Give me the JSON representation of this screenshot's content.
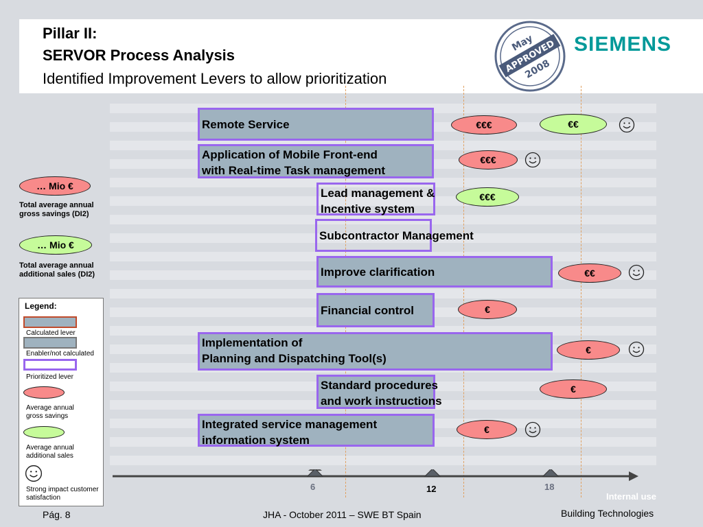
{
  "header": {
    "title_line1": "Pillar II:",
    "title_line2": "SERVOR Process Analysis",
    "subtitle": "Identified Improvement Levers to allow prioritization",
    "brand": "SIEMENS",
    "stamp_text": "May APPROVED 2008"
  },
  "side": {
    "gross_pill": "… Mio €",
    "gross_note_line1": "Total average annual",
    "gross_note_line2": "gross savings (DI2)",
    "sales_pill": "… Mio €",
    "sales_note_line1": "Total average annual",
    "sales_note_line2": "additional sales (DI2)"
  },
  "legend": {
    "title": "Legend:",
    "calculated": "Calculated lever",
    "enabler": "Enabler/not calculated",
    "prioritized": "Prioritized lever",
    "gross_line1": "Average annual",
    "gross_line2": "gross savings",
    "sales_line1": "Average annual",
    "sales_line2": "additional sales",
    "impact_line1": "Strong impact customer",
    "impact_line2": "satisfaction"
  },
  "levers": [
    {
      "line1": "Remote Service",
      "line2": "",
      "savings": "€€€",
      "sales": "€€",
      "impact": true
    },
    {
      "line1": "Application of Mobile Front-end",
      "line2": "with Real-time Task management",
      "savings": "€€€",
      "sales": "",
      "impact": true
    },
    {
      "line1": "Lead management &",
      "line2": "Incentive system",
      "savings": "",
      "sales": "€€€",
      "impact": false
    },
    {
      "line1": "Subcontractor Management",
      "line2": "",
      "savings": "",
      "sales": "",
      "impact": false
    },
    {
      "line1": "Improve clarification",
      "line2": "",
      "savings": "€€",
      "sales": "",
      "impact": true
    },
    {
      "line1": "Financial control",
      "line2": "",
      "savings": "€",
      "sales": "",
      "impact": false
    },
    {
      "line1": "Implementation of",
      "line2": "Planning and Dispatching Tool(s)",
      "savings": "€",
      "sales": "",
      "impact": true
    },
    {
      "line1": "Standard procedures",
      "line2": "and work instructions",
      "savings": "€",
      "sales": "",
      "impact": false
    },
    {
      "line1": "Integrated service management",
      "line2": "information system",
      "savings": "€",
      "sales": "",
      "impact": true
    }
  ],
  "timeline": {
    "m6": "6",
    "m12": "12",
    "m18": "18"
  },
  "footer": {
    "page": "Pág. 8",
    "center": "JHA - October 2011 – SWE BT Spain",
    "right": "Building Technologies",
    "internal": "Internal use"
  },
  "colors": {
    "lever_fill": "#9fb2bf",
    "lever_border": "#9966ee",
    "savings": "#f88a8a",
    "sales": "#c6fb9a",
    "brand": "#009999"
  }
}
